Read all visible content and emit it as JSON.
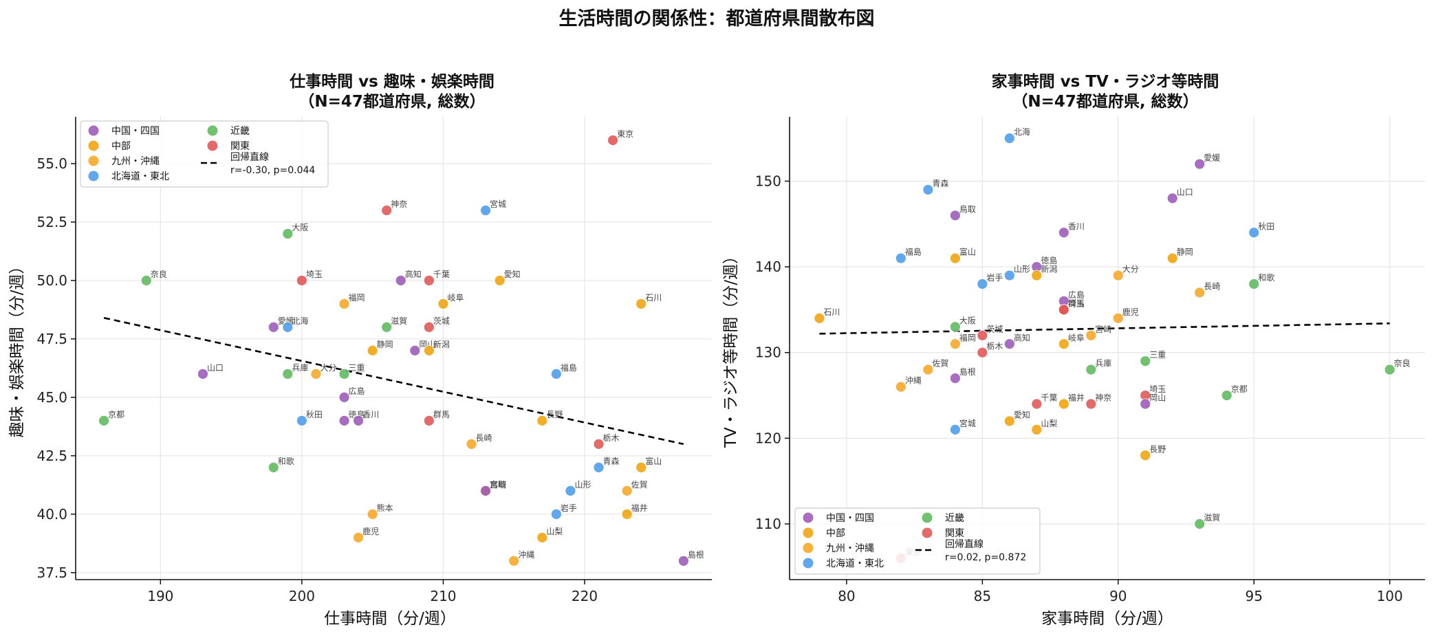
{
  "figure": {
    "title": "生活時間の関係性：都道府県間散布図"
  },
  "colors": {
    "中国・四国": "#9b59b6",
    "中部": "#f0a30a",
    "九州・沖縄": "#f5a623",
    "北海道・東北": "#4a9bea",
    "近畿": "#5cb85c",
    "関東": "#e05555",
    "regression": "#000000"
  },
  "chart_data": [
    {
      "type": "scatter",
      "title_line1": "仕事時間 vs 趣味・娯楽時間",
      "title_line2": "（N=47都道府県, 総数）",
      "xlabel": "仕事時間（分/週）",
      "ylabel": "趣味・娯楽時間（分/週）",
      "xlim": [
        184,
        229
      ],
      "ylim": [
        37.2,
        57.0
      ],
      "xticks": [
        "190",
        "200",
        "210",
        "220"
      ],
      "yticks": [
        "37.5",
        "40.0",
        "42.5",
        "45.0",
        "47.5",
        "50.0",
        "52.5",
        "55.0"
      ],
      "grid": true,
      "legend_position": "top-left",
      "legend": {
        "entries": [
          "中国・四国",
          "中部",
          "九州・沖縄",
          "北海道・東北",
          "近畿",
          "関東"
        ],
        "regression_label": "回帰直線",
        "stat": "r=-0.30, p=0.044"
      },
      "regression": {
        "x": [
          186,
          227
        ],
        "y": [
          48.4,
          43.0
        ]
      },
      "points": [
        {
          "label": "京都",
          "region": "近畿",
          "x": 186,
          "y": 44.0
        },
        {
          "label": "奈良",
          "region": "近畿",
          "x": 189,
          "y": 50.0
        },
        {
          "label": "山口",
          "region": "中国・四国",
          "x": 193,
          "y": 46.0
        },
        {
          "label": "愛媛",
          "region": "中国・四国",
          "x": 198,
          "y": 48.0
        },
        {
          "label": "和歌",
          "region": "近畿",
          "x": 198,
          "y": 42.0
        },
        {
          "label": "大阪",
          "region": "近畿",
          "x": 199,
          "y": 52.0
        },
        {
          "label": "北海",
          "region": "北海道・東北",
          "x": 199,
          "y": 48.0
        },
        {
          "label": "兵庫",
          "region": "近畿",
          "x": 199,
          "y": 46.0
        },
        {
          "label": "埼玉",
          "region": "関東",
          "x": 200,
          "y": 50.0
        },
        {
          "label": "秋田",
          "region": "北海道・東北",
          "x": 200,
          "y": 44.0
        },
        {
          "label": "大分",
          "region": "九州・沖縄",
          "x": 201,
          "y": 46.0
        },
        {
          "label": "福岡",
          "region": "九州・沖縄",
          "x": 203,
          "y": 49.0
        },
        {
          "label": "三重",
          "region": "近畿",
          "x": 203,
          "y": 46.0
        },
        {
          "label": "広島",
          "region": "中国・四国",
          "x": 203,
          "y": 45.0
        },
        {
          "label": "徳島",
          "region": "中国・四国",
          "x": 203,
          "y": 44.0
        },
        {
          "label": "香川",
          "region": "中国・四国",
          "x": 204,
          "y": 44.0
        },
        {
          "label": "鹿児",
          "region": "九州・沖縄",
          "x": 204,
          "y": 39.0
        },
        {
          "label": "熊本",
          "region": "九州・沖縄",
          "x": 205,
          "y": 40.0
        },
        {
          "label": "静岡",
          "region": "中部",
          "x": 205,
          "y": 47.0
        },
        {
          "label": "滋賀",
          "region": "近畿",
          "x": 206,
          "y": 48.0
        },
        {
          "label": "神奈",
          "region": "関東",
          "x": 206,
          "y": 53.0
        },
        {
          "label": "高知",
          "region": "中国・四国",
          "x": 207,
          "y": 50.0
        },
        {
          "label": "岡山",
          "region": "中国・四国",
          "x": 208,
          "y": 47.0
        },
        {
          "label": "千葉",
          "region": "関東",
          "x": 209,
          "y": 50.0
        },
        {
          "label": "茨城",
          "region": "関東",
          "x": 209,
          "y": 48.0
        },
        {
          "label": "新潟",
          "region": "中部",
          "x": 209,
          "y": 47.0
        },
        {
          "label": "群馬",
          "region": "関東",
          "x": 209,
          "y": 44.0
        },
        {
          "label": "岐阜",
          "region": "中部",
          "x": 210,
          "y": 49.0
        },
        {
          "label": "長崎",
          "region": "九州・沖縄",
          "x": 212,
          "y": 43.0
        },
        {
          "label": "宮城",
          "region": "北海道・東北",
          "x": 213,
          "y": 53.0
        },
        {
          "label": "宮崎",
          "region": "九州・沖縄",
          "x": 213,
          "y": 41.0
        },
        {
          "label": "鳥取",
          "region": "中国・四国",
          "x": 213,
          "y": 41.0
        },
        {
          "label": "愛知",
          "region": "中部",
          "x": 214,
          "y": 50.0
        },
        {
          "label": "沖縄",
          "region": "九州・沖縄",
          "x": 215,
          "y": 38.0
        },
        {
          "label": "長野",
          "region": "中部",
          "x": 217,
          "y": 44.0
        },
        {
          "label": "山梨",
          "region": "中部",
          "x": 217,
          "y": 39.0
        },
        {
          "label": "福島",
          "region": "北海道・東北",
          "x": 218,
          "y": 46.0
        },
        {
          "label": "岩手",
          "region": "北海道・東北",
          "x": 218,
          "y": 40.0
        },
        {
          "label": "山形",
          "region": "北海道・東北",
          "x": 219,
          "y": 41.0
        },
        {
          "label": "栃木",
          "region": "関東",
          "x": 221,
          "y": 43.0
        },
        {
          "label": "青森",
          "region": "北海道・東北",
          "x": 221,
          "y": 42.0
        },
        {
          "label": "東京",
          "region": "関東",
          "x": 222,
          "y": 56.0
        },
        {
          "label": "佐賀",
          "region": "九州・沖縄",
          "x": 223,
          "y": 41.0
        },
        {
          "label": "福井",
          "region": "中部",
          "x": 223,
          "y": 40.0
        },
        {
          "label": "富山",
          "region": "中部",
          "x": 224,
          "y": 42.0
        },
        {
          "label": "石川",
          "region": "中部",
          "x": 224,
          "y": 49.0
        },
        {
          "label": "島根",
          "region": "中国・四国",
          "x": 227,
          "y": 38.0
        }
      ]
    },
    {
      "type": "scatter",
      "title_line1": "家事時間 vs TV・ラジオ等時間",
      "title_line2": "（N=47都道府県, 総数）",
      "xlabel": "家事時間（分/週）",
      "ylabel": "TV・ラジオ等時間（分/週）",
      "xlim": [
        77.9,
        101.3
      ],
      "ylim": [
        103.5,
        157.5
      ],
      "xticks": [
        "80",
        "85",
        "90",
        "95",
        "100"
      ],
      "yticks": [
        "110",
        "120",
        "130",
        "140",
        "150"
      ],
      "grid": true,
      "legend_position": "bottom-left",
      "legend": {
        "entries": [
          "中国・四国",
          "中部",
          "九州・沖縄",
          "北海道・東北",
          "近畿",
          "関東"
        ],
        "regression_label": "回帰直線",
        "stat": "r=0.02, p=0.872"
      },
      "regression": {
        "x": [
          79,
          100
        ],
        "y": [
          132.2,
          133.4
        ]
      },
      "points": [
        {
          "label": "石川",
          "region": "中部",
          "x": 79,
          "y": 134
        },
        {
          "label": "沖縄",
          "region": "九州・沖縄",
          "x": 82,
          "y": 126
        },
        {
          "label": "福島",
          "region": "北海道・東北",
          "x": 82,
          "y": 141
        },
        {
          "label": "東京",
          "region": "関東",
          "x": 82,
          "y": 106
        },
        {
          "label": "佐賀",
          "region": "九州・沖縄",
          "x": 83,
          "y": 128
        },
        {
          "label": "青森",
          "region": "北海道・東北",
          "x": 83,
          "y": 149
        },
        {
          "label": "鳥取",
          "region": "中国・四国",
          "x": 84,
          "y": 146
        },
        {
          "label": "富山",
          "region": "中部",
          "x": 84,
          "y": 141
        },
        {
          "label": "大阪",
          "region": "近畿",
          "x": 84,
          "y": 133
        },
        {
          "label": "福岡",
          "region": "九州・沖縄",
          "x": 84,
          "y": 131
        },
        {
          "label": "島根",
          "region": "中国・四国",
          "x": 84,
          "y": 127
        },
        {
          "label": "宮城",
          "region": "北海道・東北",
          "x": 84,
          "y": 121
        },
        {
          "label": "岩手",
          "region": "北海道・東北",
          "x": 85,
          "y": 138
        },
        {
          "label": "茨城",
          "region": "関東",
          "x": 85,
          "y": 132
        },
        {
          "label": "栃木",
          "region": "関東",
          "x": 85,
          "y": 130
        },
        {
          "label": "北海",
          "region": "北海道・東北",
          "x": 86,
          "y": 155
        },
        {
          "label": "山形",
          "region": "北海道・東北",
          "x": 86,
          "y": 139
        },
        {
          "label": "高知",
          "region": "中国・四国",
          "x": 86,
          "y": 131
        },
        {
          "label": "愛知",
          "region": "中部",
          "x": 86,
          "y": 122
        },
        {
          "label": "徳島",
          "region": "中国・四国",
          "x": 87,
          "y": 140
        },
        {
          "label": "新潟",
          "region": "中部",
          "x": 87,
          "y": 139
        },
        {
          "label": "千葉",
          "region": "関東",
          "x": 87,
          "y": 124
        },
        {
          "label": "山梨",
          "region": "中部",
          "x": 87,
          "y": 121
        },
        {
          "label": "香川",
          "region": "中国・四国",
          "x": 88,
          "y": 144
        },
        {
          "label": "広島",
          "region": "中国・四国",
          "x": 88,
          "y": 136
        },
        {
          "label": "埼玉",
          "region": "関東",
          "x": 88,
          "y": 135
        },
        {
          "label": "群馬",
          "region": "関東",
          "x": 88,
          "y": 135
        },
        {
          "label": "岐阜",
          "region": "中部",
          "x": 88,
          "y": 131
        },
        {
          "label": "福井",
          "region": "中部",
          "x": 88,
          "y": 124
        },
        {
          "label": "兵庫",
          "region": "近畿",
          "x": 89,
          "y": 128
        },
        {
          "label": "宮崎",
          "region": "九州・沖縄",
          "x": 89,
          "y": 132
        },
        {
          "label": "神奈",
          "region": "関東",
          "x": 89,
          "y": 124
        },
        {
          "label": "大分",
          "region": "九州・沖縄",
          "x": 90,
          "y": 139
        },
        {
          "label": "鹿児",
          "region": "九州・沖縄",
          "x": 90,
          "y": 134
        },
        {
          "label": "三重",
          "region": "近畿",
          "x": 91,
          "y": 129
        },
        {
          "label": "埼玉",
          "region": "関東",
          "x": 91,
          "y": 125
        },
        {
          "label": "岡山",
          "region": "中国・四国",
          "x": 91,
          "y": 124
        },
        {
          "label": "長野",
          "region": "中部",
          "x": 91,
          "y": 118
        },
        {
          "label": "山口",
          "region": "中国・四国",
          "x": 92,
          "y": 148
        },
        {
          "label": "静岡",
          "region": "中部",
          "x": 92,
          "y": 141
        },
        {
          "label": "愛媛",
          "region": "中国・四国",
          "x": 93,
          "y": 152
        },
        {
          "label": "長崎",
          "region": "九州・沖縄",
          "x": 93,
          "y": 137
        },
        {
          "label": "滋賀",
          "region": "近畿",
          "x": 93,
          "y": 110
        },
        {
          "label": "京都",
          "region": "近畿",
          "x": 94,
          "y": 125
        },
        {
          "label": "秋田",
          "region": "北海道・東北",
          "x": 95,
          "y": 144
        },
        {
          "label": "和歌",
          "region": "近畿",
          "x": 95,
          "y": 138
        },
        {
          "label": "奈良",
          "region": "近畿",
          "x": 100,
          "y": 128
        }
      ]
    }
  ]
}
